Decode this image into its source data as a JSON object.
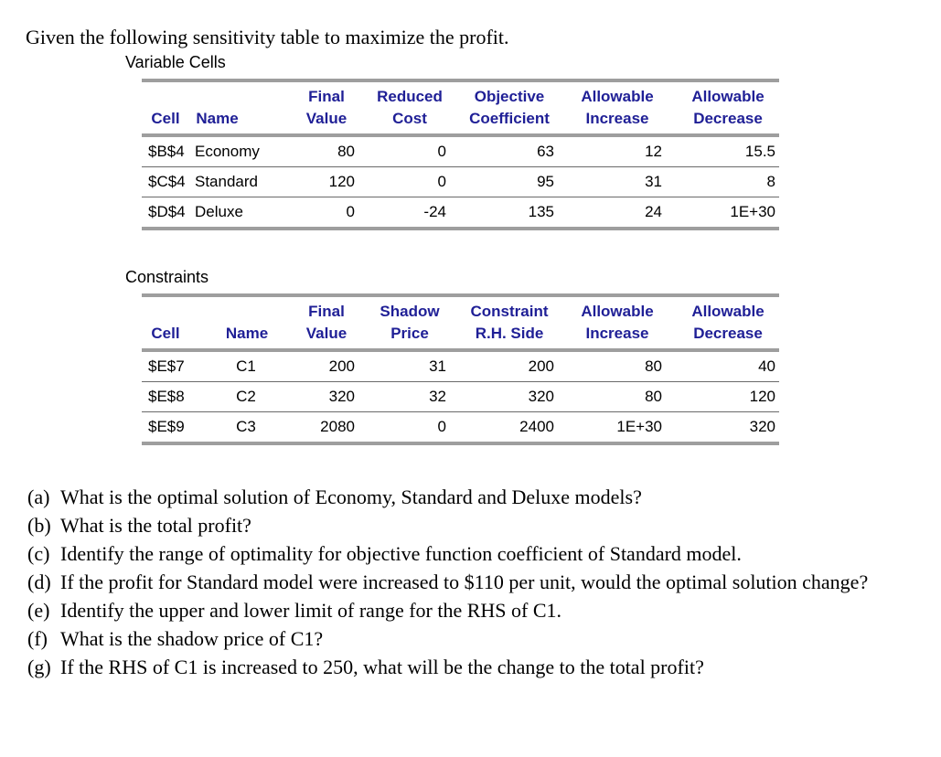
{
  "intro": "Given the following sensitivity table to maximize the profit.",
  "colors": {
    "header_text": "#1F1F96",
    "rule_thick": "#9E9E9E",
    "rule_thin": "#6A6A6A",
    "body_text": "#000000"
  },
  "variable_cells": {
    "label": "Variable Cells",
    "header_row1": [
      "",
      "",
      "Final",
      "Reduced",
      "Objective",
      "Allowable",
      "Allowable"
    ],
    "header_row2": [
      "Cell",
      "Name",
      "Value",
      "Cost",
      "Coefficient",
      "Increase",
      "Decrease"
    ],
    "rows": [
      {
        "cell": "$B$4",
        "name": "Economy",
        "final_value": "80",
        "reduced_cost": "0",
        "objective_coefficient": "63",
        "allowable_increase": "12",
        "allowable_decrease": "15.5"
      },
      {
        "cell": "$C$4",
        "name": "Standard",
        "final_value": "120",
        "reduced_cost": "0",
        "objective_coefficient": "95",
        "allowable_increase": "31",
        "allowable_decrease": "8"
      },
      {
        "cell": "$D$4",
        "name": "Deluxe",
        "final_value": "0",
        "reduced_cost": "-24",
        "objective_coefficient": "135",
        "allowable_increase": "24",
        "allowable_decrease": "1E+30"
      }
    ]
  },
  "constraints": {
    "label": "Constraints",
    "header_row1": [
      "",
      "",
      "Final",
      "Shadow",
      "Constraint",
      "Allowable",
      "Allowable"
    ],
    "header_row2": [
      "Cell",
      "Name",
      "Value",
      "Price",
      "R.H. Side",
      "Increase",
      "Decrease"
    ],
    "rows": [
      {
        "cell": "$E$7",
        "name": "C1",
        "final_value": "200",
        "shadow_price": "31",
        "rhs": "200",
        "allowable_increase": "80",
        "allowable_decrease": "40"
      },
      {
        "cell": "$E$8",
        "name": "C2",
        "final_value": "320",
        "shadow_price": "32",
        "rhs": "320",
        "allowable_increase": "80",
        "allowable_decrease": "120"
      },
      {
        "cell": "$E$9",
        "name": "C3",
        "final_value": "2080",
        "shadow_price": "0",
        "rhs": "2400",
        "allowable_increase": "1E+30",
        "allowable_decrease": "320"
      }
    ]
  },
  "questions": [
    {
      "label": "(a)",
      "text": "What is the optimal solution of Economy, Standard and Deluxe models?"
    },
    {
      "label": "(b)",
      "text": "What is the total profit?"
    },
    {
      "label": "(c)",
      "text": "Identify the range of optimality for objective function coefficient of Standard model."
    },
    {
      "label": "(d)",
      "text": "If the profit for Standard model were increased to $110 per unit, would the optimal solution change?"
    },
    {
      "label": "(e)",
      "text": "Identify the upper and lower limit of range for the RHS of C1."
    },
    {
      "label": "(f)",
      "text": "What is the shadow price of C1?"
    },
    {
      "label": "(g)",
      "text": "If the RHS of C1 is increased to 250, what will be the change to the total profit?"
    }
  ]
}
